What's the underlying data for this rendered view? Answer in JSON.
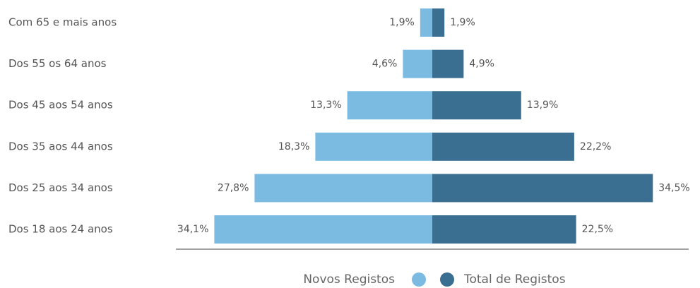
{
  "chart_data": {
    "type": "pyramid",
    "categories": [
      "Com 65 e mais anos",
      "Dos 55 os 64 anos",
      "Dos 45 aos 54 anos",
      "Dos 35 aos 44 anos",
      "Dos 25 aos 34 anos",
      "Dos 18 aos 24 anos"
    ],
    "series": [
      {
        "name": "Novos Registos",
        "color": "#7bbbe2",
        "values": [
          1.9,
          4.6,
          13.3,
          18.3,
          27.8,
          34.1
        ],
        "value_labels": [
          "1,9%",
          "4,6%",
          "13,3%",
          "18,3%",
          "27,8%",
          "34,1%"
        ]
      },
      {
        "name": "Total de Registos",
        "color": "#3a6f91",
        "values": [
          1.9,
          4.9,
          13.9,
          22.2,
          34.5,
          22.5
        ],
        "value_labels": [
          "1,9%",
          "4,9%",
          "13,9%",
          "22,2%",
          "34,5%",
          "22,5%"
        ]
      }
    ]
  }
}
